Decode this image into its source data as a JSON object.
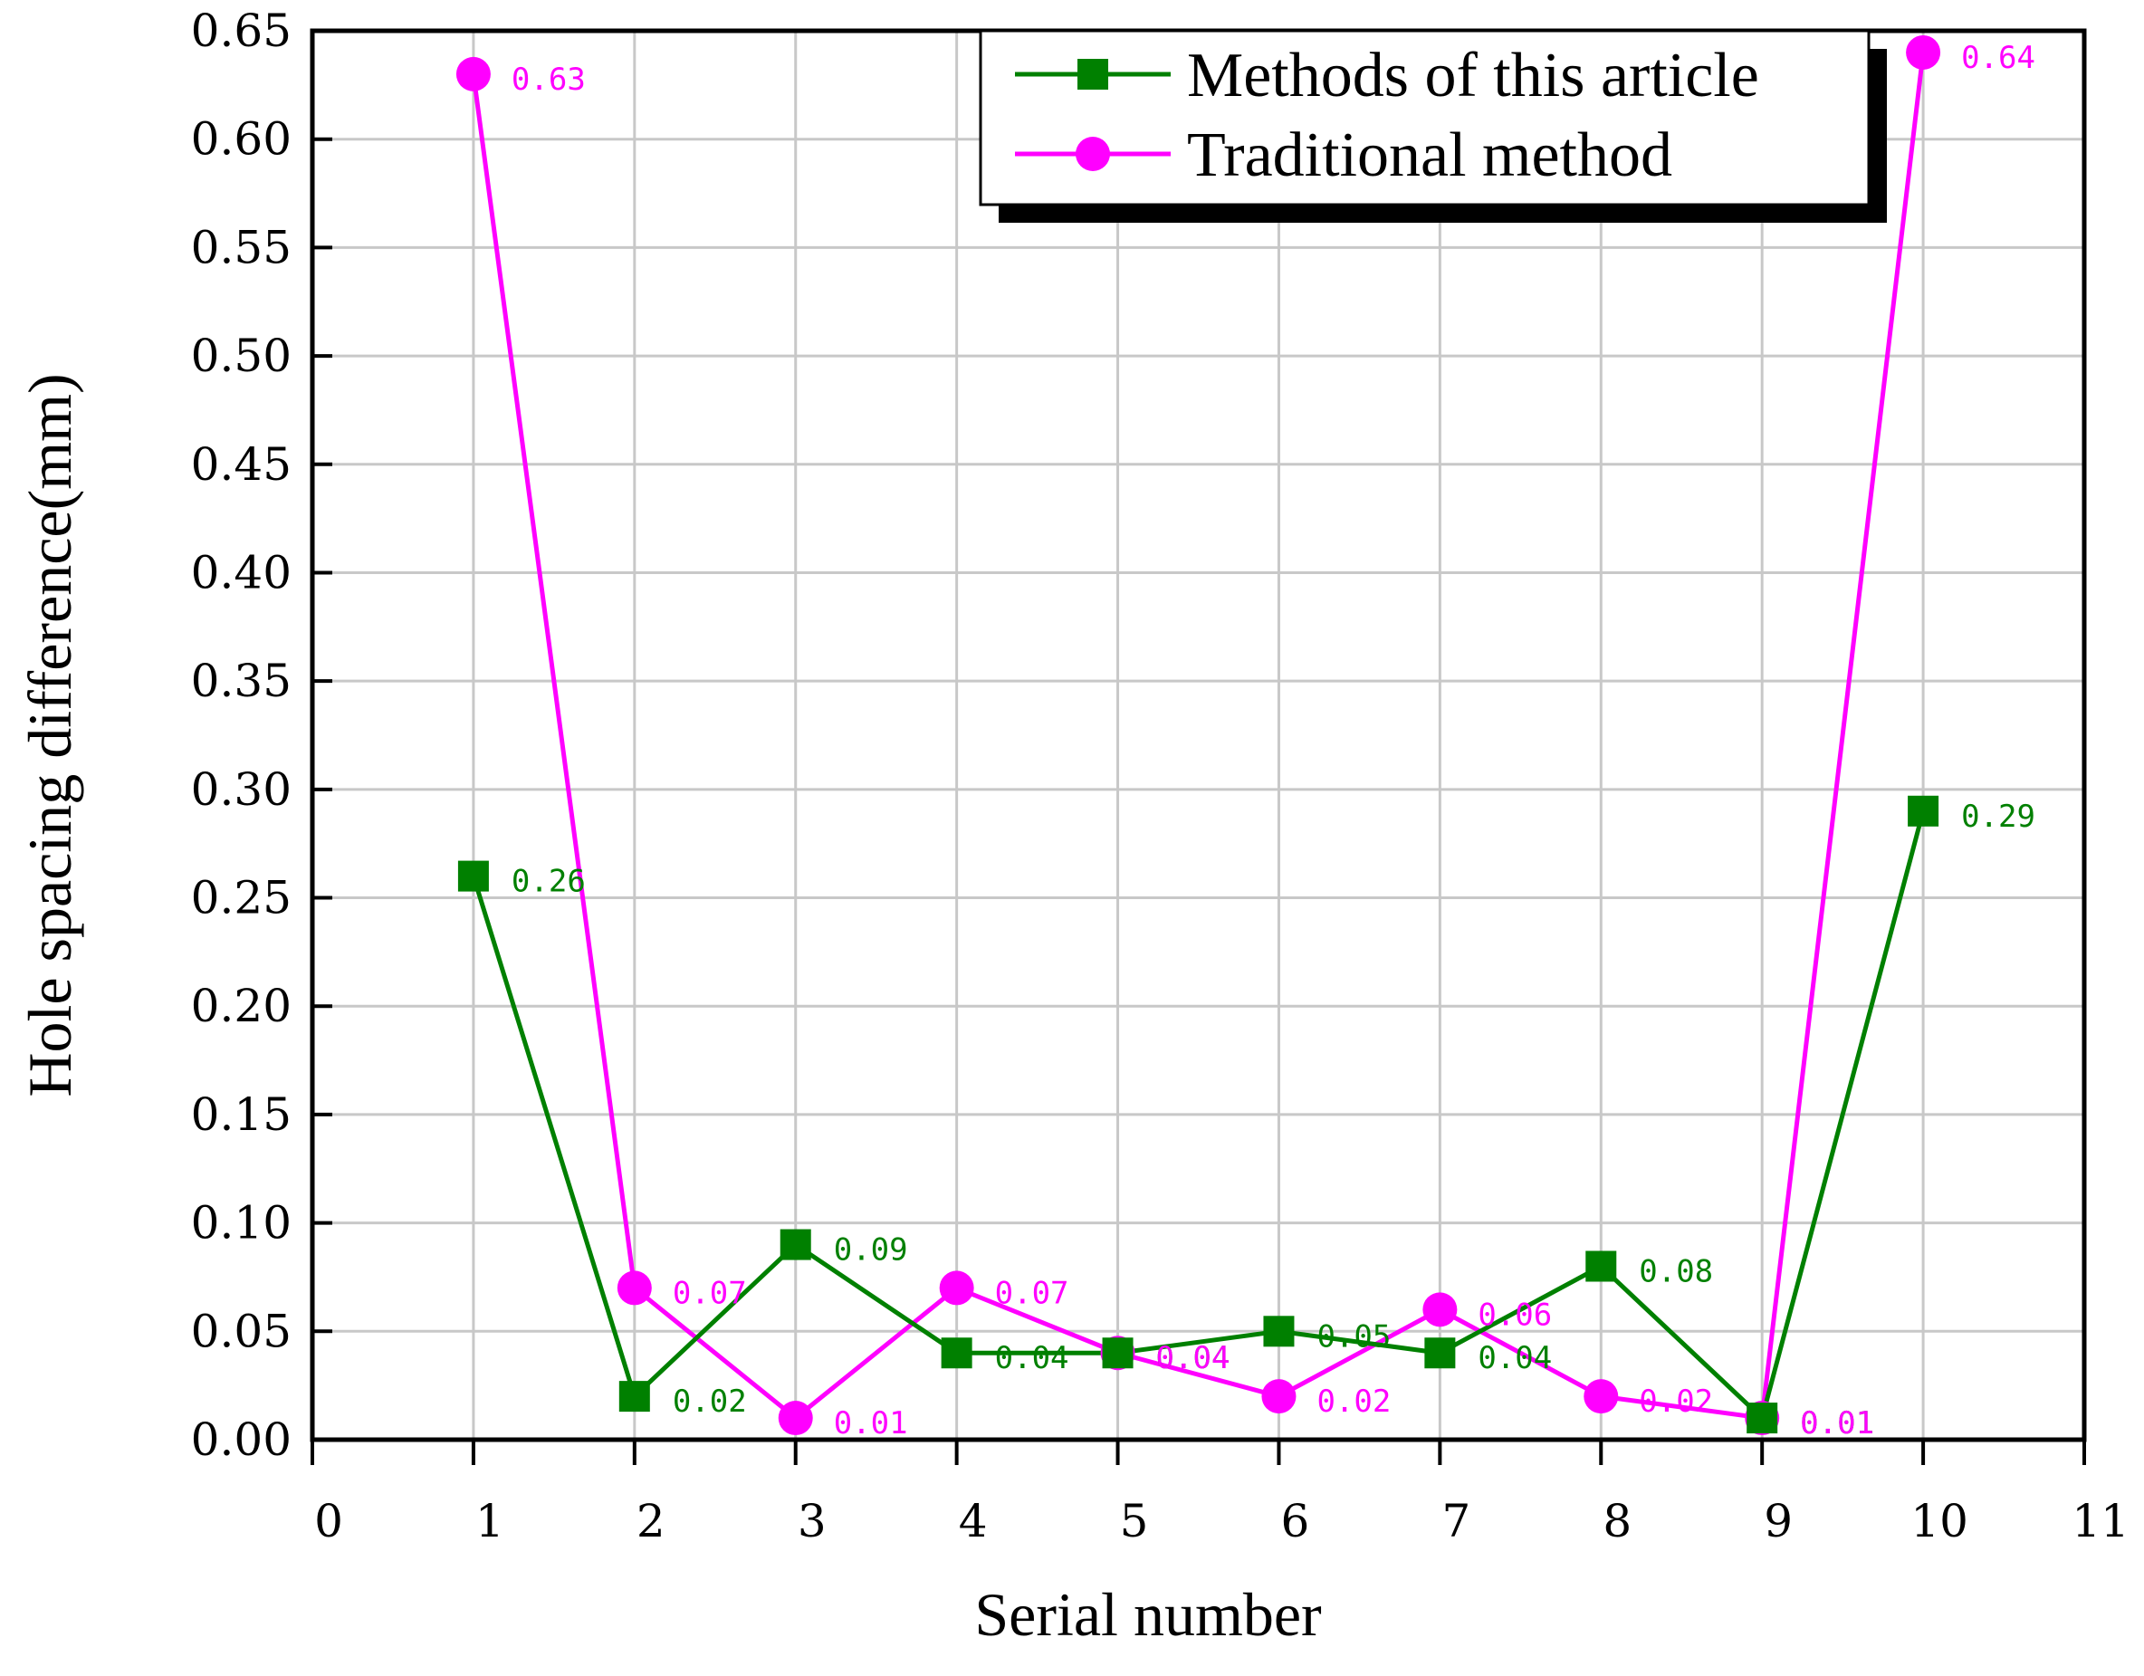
{
  "chart_data": {
    "type": "line",
    "title": "",
    "xlabel": "Serial number",
    "ylabel": "Hole spacing difference(mm)",
    "xlim": [
      0,
      11
    ],
    "ylim": [
      0,
      0.65
    ],
    "x_ticks": [
      "0",
      "1",
      "2",
      "3",
      "4",
      "5",
      "6",
      "7",
      "8",
      "9",
      "10",
      "11"
    ],
    "y_ticks": [
      "0.00",
      "0.05",
      "0.10",
      "0.15",
      "0.20",
      "0.25",
      "0.30",
      "0.35",
      "0.40",
      "0.45",
      "0.50",
      "0.55",
      "0.60",
      "0.65"
    ],
    "x": [
      1,
      2,
      3,
      4,
      5,
      6,
      7,
      8,
      9,
      10
    ],
    "grid": true,
    "legend_position": "top-right",
    "series": [
      {
        "name": "Methods of this article",
        "color": "#008000",
        "marker": "square",
        "values": [
          0.26,
          0.02,
          0.09,
          0.04,
          0.04,
          0.05,
          0.04,
          0.08,
          0.01,
          0.29
        ],
        "labels": [
          "0.26",
          "0.02",
          "0.09",
          "0.04",
          "0.04",
          "0.05",
          "0.04",
          "0.08",
          "0.01",
          "0.29"
        ]
      },
      {
        "name": "Traditional method",
        "color": "#ff00ff",
        "marker": "circle",
        "values": [
          0.63,
          0.07,
          0.01,
          0.07,
          0.04,
          0.02,
          0.06,
          0.02,
          0.01,
          0.64
        ],
        "labels": [
          "0.63",
          "0.07",
          "0.01",
          "0.07",
          "0.04",
          "0.02",
          "0.06",
          "0.02",
          "0.01",
          "0.64"
        ]
      }
    ]
  }
}
